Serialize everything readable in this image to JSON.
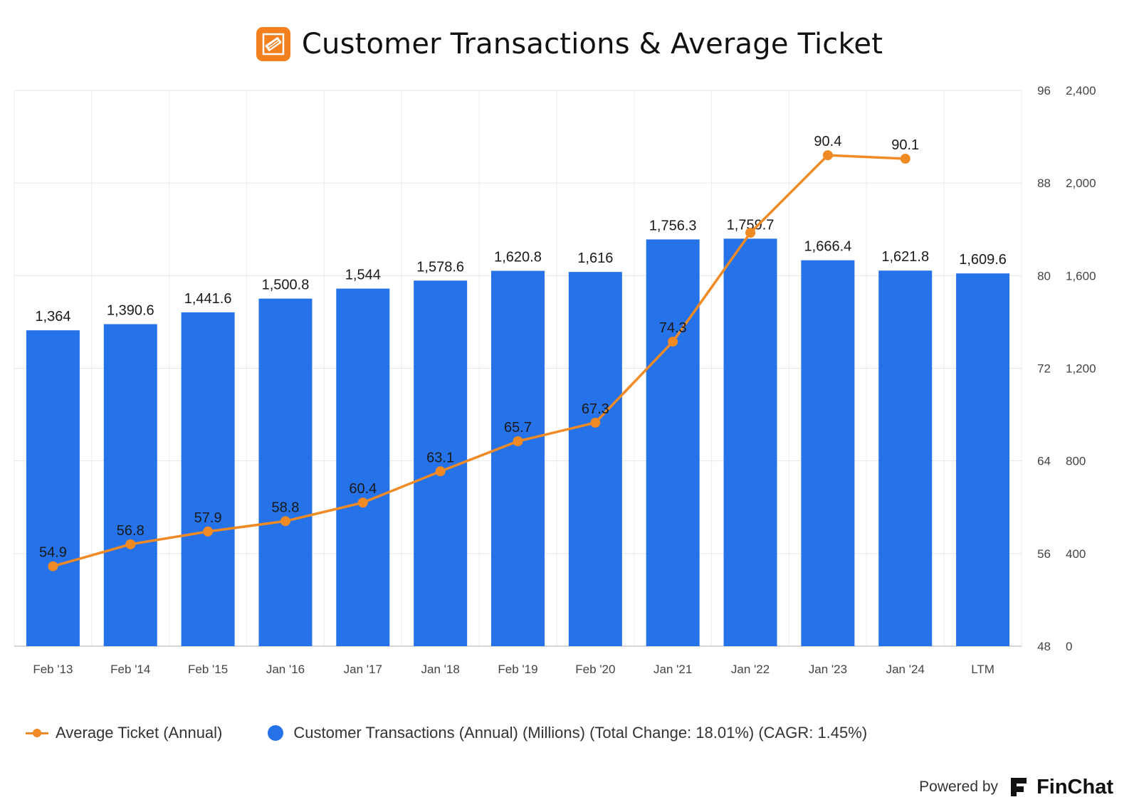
{
  "header": {
    "title": "Customer Transactions & Average Ticket",
    "logo_icon": "home-depot-logo"
  },
  "legend": {
    "line_label": "Average Ticket (Annual)",
    "bar_label": "Customer Transactions (Annual) (Millions) (Total Change: 18.01%) (CAGR: 1.45%)"
  },
  "footer": {
    "powered_by": "Powered by",
    "brand": "FinChat"
  },
  "chart_data": {
    "type": "bar",
    "title": "Customer Transactions & Average Ticket",
    "categories": [
      "Feb '13",
      "Feb '14",
      "Feb '15",
      "Jan '16",
      "Jan '17",
      "Jan '18",
      "Feb '19",
      "Feb '20",
      "Jan '21",
      "Jan '22",
      "Jan '23",
      "Jan '24",
      "LTM"
    ],
    "series": [
      {
        "name": "Customer Transactions (Annual) (Millions) (Total Change: 18.01%) (CAGR: 1.45%)",
        "type": "bar",
        "axis": "right-outer",
        "color": "#2672e8",
        "values": [
          1364,
          1390.6,
          1441.6,
          1500.8,
          1544,
          1578.6,
          1620.8,
          1616,
          1756.3,
          1759.7,
          1666.4,
          1621.8,
          1609.6
        ],
        "labels": [
          "1,364",
          "1,390.6",
          "1,441.6",
          "1,500.8",
          "1,544",
          "1,578.6",
          "1,620.8",
          "1,616",
          "1,756.3",
          "1,759.7",
          "1,666.4",
          "1,621.8",
          "1,609.6"
        ]
      },
      {
        "name": "Average Ticket (Annual)",
        "type": "line",
        "axis": "right-inner",
        "color": "#f08a24",
        "values": [
          54.9,
          56.8,
          57.9,
          58.8,
          60.4,
          63.1,
          65.7,
          67.3,
          74.3,
          83.7,
          90.4,
          90.1,
          null
        ],
        "labels": [
          "54.9",
          "56.8",
          "57.9",
          "58.8",
          "60.4",
          "63.1",
          "65.7",
          "67.3",
          "74.3",
          "",
          "90.4",
          "90.1",
          ""
        ]
      }
    ],
    "y_axis_ticket": {
      "ylim": [
        48,
        96
      ],
      "ticks": [
        "48",
        "56",
        "64",
        "72",
        "80",
        "88",
        "96"
      ]
    },
    "y_axis_transactions": {
      "ylim": [
        0,
        2400
      ],
      "ticks": [
        "0",
        "400",
        "800",
        "1,200",
        "1,600",
        "2,000",
        "2,400"
      ]
    },
    "grid": true,
    "legend_position": "bottom-left"
  }
}
